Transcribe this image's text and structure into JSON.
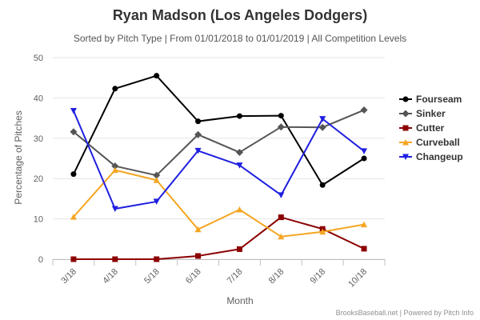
{
  "chart_data": {
    "type": "line",
    "title": "Ryan Madson (Los Angeles Dodgers)",
    "subtitle": "Sorted by Pitch Type | From 01/01/2018 to 01/01/2019 | All Competition Levels",
    "xlabel": "Month",
    "ylabel": "Percentage of Pitches",
    "categories": [
      "3/18",
      "4/18",
      "5/18",
      "6/18",
      "7/18",
      "8/18",
      "9/18",
      "10/18"
    ],
    "ylim": [
      0,
      50
    ],
    "yticks": [
      0,
      10,
      20,
      30,
      40,
      50
    ],
    "grid": true,
    "legend_position": "right",
    "credits": "BrooksBaseball.net | Powered by Pitch Info",
    "series": [
      {
        "name": "Fourseam",
        "color": "#000000",
        "marker": "circle",
        "values": [
          21.1,
          42.3,
          45.5,
          34.2,
          35.5,
          35.6,
          18.4,
          25.0
        ]
      },
      {
        "name": "Sinker",
        "color": "#555555",
        "marker": "diamond",
        "values": [
          31.6,
          23.1,
          20.8,
          30.9,
          26.5,
          32.8,
          32.7,
          37.0
        ]
      },
      {
        "name": "Cutter",
        "color": "#8b0000",
        "marker": "square",
        "values": [
          0,
          0,
          0,
          0.8,
          2.5,
          10.4,
          7.5,
          2.6
        ]
      },
      {
        "name": "Curveball",
        "color": "#f5a623",
        "marker": "triangle-up",
        "values": [
          10.5,
          22.1,
          19.6,
          7.4,
          12.3,
          5.6,
          6.8,
          8.6
        ]
      },
      {
        "name": "Changeup",
        "color": "#1f1fe0",
        "marker": "triangle-down",
        "values": [
          36.8,
          12.5,
          14.3,
          26.9,
          23.3,
          15.9,
          34.8,
          26.8
        ]
      }
    ]
  }
}
